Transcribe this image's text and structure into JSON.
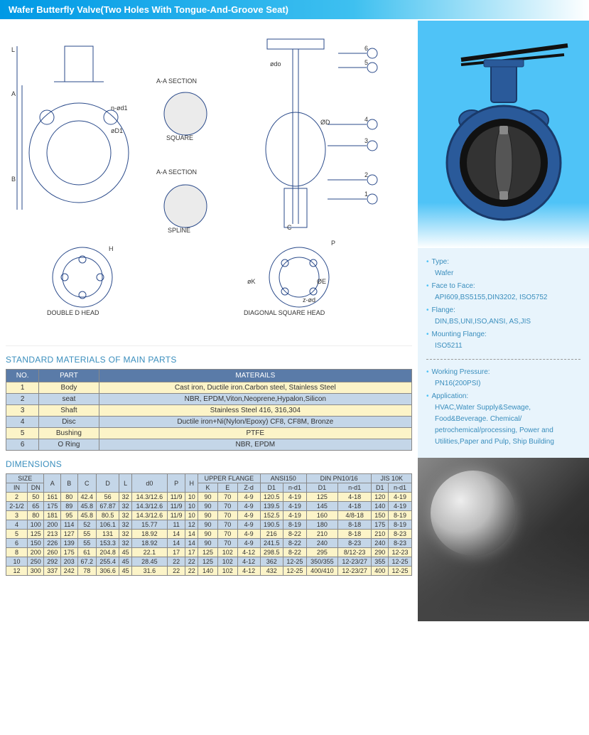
{
  "title": "Wafer Butterfly Valve(Two Holes With Tongue-And-Groove Seat)",
  "diagram_labels": {
    "aa_section_1": "A-A SECTION",
    "square": "SQUARE",
    "aa_section_2": "A-A SECTION",
    "spline": "SPLINE",
    "double_d": "DOUBLE D HEAD",
    "diagonal": "DIAGONAL SQUARE HEAD",
    "dims": [
      "A",
      "B",
      "L",
      "H",
      "øD1",
      "n-ød1",
      "C",
      "P",
      "ødo",
      "øD",
      "øK",
      "øE",
      "z-ød"
    ],
    "callouts": [
      "1",
      "2",
      "3",
      "4",
      "5",
      "6"
    ]
  },
  "materials_section_title": "STANDARD MATERIALS OF MAIN PARTS",
  "materials_headers": [
    "NO.",
    "PART",
    "MATERAILS"
  ],
  "materials_rows": [
    [
      "1",
      "Body",
      "Cast iron, Ductile iron.Carbon steel, Stainless Steel"
    ],
    [
      "2",
      "seat",
      "NBR, EPDM,Viton,Neoprene,Hypalon,Silicon"
    ],
    [
      "3",
      "Shaft",
      "Stainless Steel 416, 316,304"
    ],
    [
      "4",
      "Disc",
      "Ductile iron+Ni(Nylon/Epoxy) CF8, CF8M, Bronze"
    ],
    [
      "5",
      "Bushing",
      "PTFE"
    ],
    [
      "6",
      "O Ring",
      "NBR, EPDM"
    ]
  ],
  "dimensions_section_title": "DIMENSIONS",
  "dims_top_headers": [
    {
      "label": "SIZE",
      "span": 2
    },
    {
      "label": "A",
      "span": 1
    },
    {
      "label": "B",
      "span": 1
    },
    {
      "label": "C",
      "span": 1
    },
    {
      "label": "D",
      "span": 1
    },
    {
      "label": "L",
      "span": 1
    },
    {
      "label": "d0",
      "span": 1
    },
    {
      "label": "P",
      "span": 1
    },
    {
      "label": "H",
      "span": 1
    },
    {
      "label": "UPPER FLANGE",
      "span": 3
    },
    {
      "label": "ANSI150",
      "span": 2
    },
    {
      "label": "DIN PN10/16",
      "span": 2
    },
    {
      "label": "JIS 10K",
      "span": 2
    }
  ],
  "dims_sub_headers": [
    "IN",
    "DN",
    "",
    "",
    "",
    "",
    "",
    "",
    "",
    "",
    "K",
    "E",
    "Z-d",
    "D1",
    "n-d1",
    "D1",
    "n-d1",
    "D1",
    "n-d1"
  ],
  "dims_rows": [
    [
      "2",
      "50",
      "161",
      "80",
      "42.4",
      "56",
      "32",
      "14.3/12.6",
      "11/9",
      "10",
      "90",
      "70",
      "4-9",
      "120.5",
      "4-19",
      "125",
      "4-18",
      "120",
      "4-19"
    ],
    [
      "2-1/2",
      "65",
      "175",
      "89",
      "45.8",
      "67.87",
      "32",
      "14.3/12.6",
      "11/9",
      "10",
      "90",
      "70",
      "4-9",
      "139.5",
      "4-19",
      "145",
      "4-18",
      "140",
      "4-19"
    ],
    [
      "3",
      "80",
      "181",
      "95",
      "45.8",
      "80.5",
      "32",
      "14.3/12.6",
      "11/9",
      "10",
      "90",
      "70",
      "4-9",
      "152.5",
      "4-19",
      "160",
      "4/8-18",
      "150",
      "8-19"
    ],
    [
      "4",
      "100",
      "200",
      "114",
      "52",
      "106.1",
      "32",
      "15.77",
      "11",
      "12",
      "90",
      "70",
      "4-9",
      "190.5",
      "8-19",
      "180",
      "8-18",
      "175",
      "8-19"
    ],
    [
      "5",
      "125",
      "213",
      "127",
      "55",
      "131",
      "32",
      "18.92",
      "14",
      "14",
      "90",
      "70",
      "4-9",
      "216",
      "8-22",
      "210",
      "8-18",
      "210",
      "8-23"
    ],
    [
      "6",
      "150",
      "226",
      "139",
      "55",
      "153.3",
      "32",
      "18.92",
      "14",
      "14",
      "90",
      "70",
      "4-9",
      "241.5",
      "8-22",
      "240",
      "8-23",
      "240",
      "8-23"
    ],
    [
      "8",
      "200",
      "260",
      "175",
      "61",
      "204.8",
      "45",
      "22.1",
      "17",
      "17",
      "125",
      "102",
      "4-12",
      "298.5",
      "8-22",
      "295",
      "8/12-23",
      "290",
      "12-23"
    ],
    [
      "10",
      "250",
      "292",
      "203",
      "67.2",
      "255.4",
      "45",
      "28.45",
      "22",
      "22",
      "125",
      "102",
      "4-12",
      "362",
      "12-25",
      "350/355",
      "12-23/27",
      "355",
      "12-25"
    ],
    [
      "12",
      "300",
      "337",
      "242",
      "78",
      "306.6",
      "45",
      "31.6",
      "22",
      "22",
      "140",
      "102",
      "4-12",
      "432",
      "12-25",
      "400/410",
      "12-23/27",
      "400",
      "12-25"
    ]
  ],
  "specs": [
    {
      "label": "Type:",
      "value": "Wafer"
    },
    {
      "label": "Face to Face:",
      "value": "API609,BS5155,DIN3202, ISO5752"
    },
    {
      "label": "Flange:",
      "value": "DIN,BS,UNI,ISO,ANSI, AS,JIS"
    },
    {
      "label": "Mounting Flange:",
      "value": "ISO5211"
    }
  ],
  "specs2": [
    {
      "label": "Working Pressure:",
      "value": "PN16(200PSI)"
    },
    {
      "label": "Application:",
      "value": "HVAC,Water Supply&Sewage, Food&Beverage. Chemical/ petrochemical/processing, Power and Utilities,Paper and Pulp, Ship Building"
    }
  ],
  "colors": {
    "header_gradient_start": "#0099e5",
    "section_title": "#3a8ebd",
    "odd_row": "#fcf4c8",
    "even_row": "#c4d6e8",
    "th_bg": "#5a7ba8",
    "product_bg": "#4fc3f7",
    "specs_bg": "#e8f4fc",
    "diagram_stroke": "#2a4a8a"
  }
}
